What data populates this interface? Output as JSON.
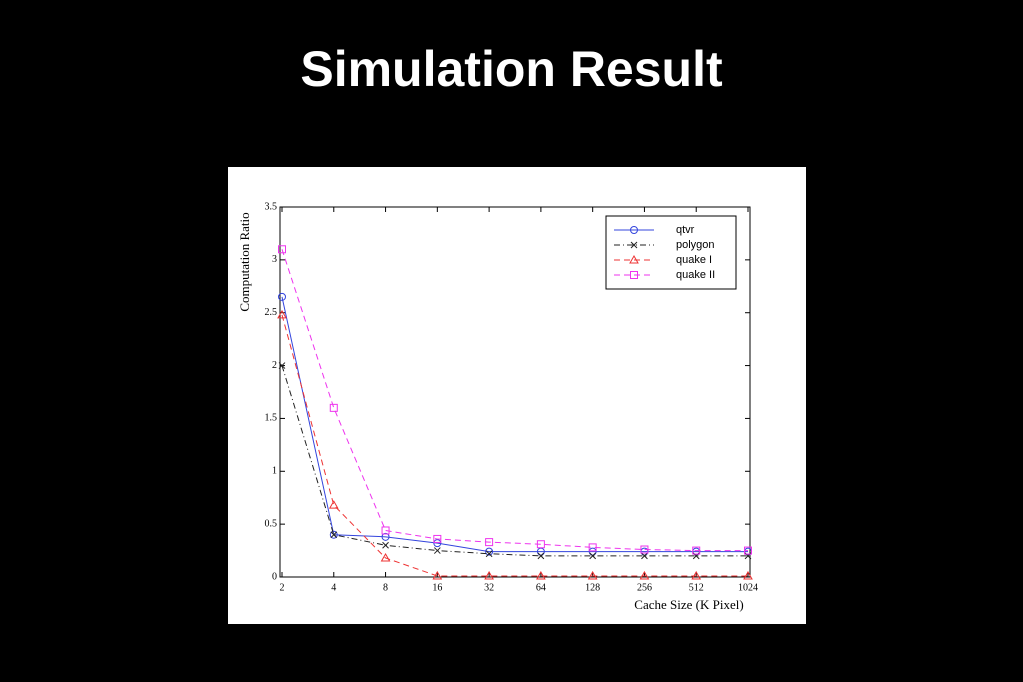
{
  "slide_title": "Simulation Result",
  "chart_data": {
    "type": "line",
    "xlabel": "Cache Size (K Pixel)",
    "ylabel": "Computation Ratio",
    "categories": [
      "2",
      "4",
      "8",
      "16",
      "32",
      "64",
      "128",
      "256",
      "512",
      "1024"
    ],
    "ylim": [
      0,
      3.5
    ],
    "yticks": [
      0,
      0.5,
      1,
      1.5,
      2,
      2.5,
      3,
      3.5
    ],
    "grid": false,
    "legend": "upper right",
    "series": [
      {
        "name": "qtvr",
        "color": "#3344dd",
        "dash": "solid",
        "marker": "circle",
        "values": [
          2.65,
          0.4,
          0.38,
          0.32,
          0.24,
          0.24,
          0.24,
          0.24,
          0.24,
          0.24
        ]
      },
      {
        "name": "polygon",
        "color": "#222222",
        "dash": "dashdot",
        "marker": "x",
        "values": [
          2.0,
          0.4,
          0.3,
          0.25,
          0.22,
          0.2,
          0.2,
          0.2,
          0.2,
          0.2
        ]
      },
      {
        "name": "quake I",
        "color": "#ee3333",
        "dash": "dashed",
        "marker": "triangle",
        "values": [
          2.48,
          0.68,
          0.18,
          0.01,
          0.01,
          0.01,
          0.01,
          0.01,
          0.01,
          0.01
        ]
      },
      {
        "name": "quake II",
        "color": "#ee33ee",
        "dash": "dashed",
        "marker": "square",
        "values": [
          3.1,
          1.6,
          0.44,
          0.36,
          0.33,
          0.31,
          0.28,
          0.26,
          0.25,
          0.25
        ]
      }
    ]
  }
}
